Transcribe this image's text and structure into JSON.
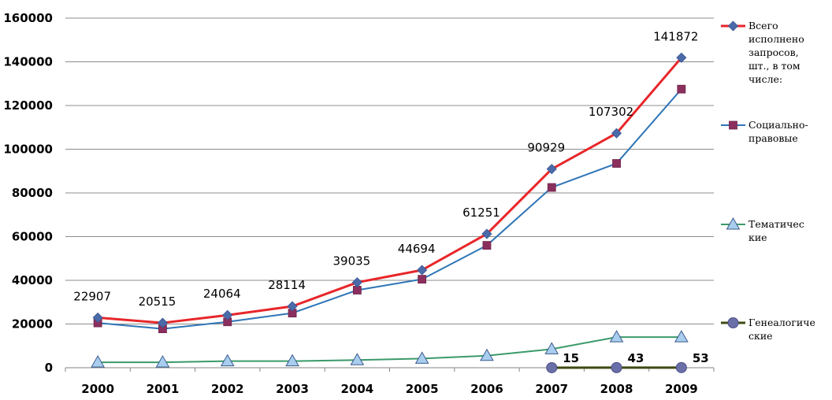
{
  "chart_data": {
    "type": "line",
    "title": "",
    "xlabel": "",
    "ylabel": "",
    "categories": [
      "2000",
      "2001",
      "2002",
      "2003",
      "2004",
      "2005",
      "2006",
      "2007",
      "2008",
      "2009"
    ],
    "y_ticks": [
      "0",
      "20000",
      "40000",
      "60000",
      "80000",
      "100000",
      "120000",
      "140000",
      "160000"
    ],
    "ylim": [
      0,
      160000
    ],
    "grid": true,
    "legend_position": "right",
    "series": [
      {
        "name": "Всего исполнено запросов, шт., в том числе:",
        "legend_lines": [
          "Всего",
          "исполнено",
          "запросов,",
          "шт., в том",
          "числе:"
        ],
        "color": "#e8262a",
        "marker": "diamond",
        "marker_color": "#4a6aa8",
        "values": [
          22907,
          20515,
          24064,
          28114,
          39035,
          44694,
          61251,
          90929,
          107302,
          141872
        ],
        "data_labels": [
          "22907",
          "20515",
          "24064",
          "28114",
          "39035",
          "44694",
          "61251",
          "90929",
          "107302",
          "141872"
        ]
      },
      {
        "name": "Социально-правовые",
        "legend_lines": [
          "Социально-",
          "правовые"
        ],
        "color": "#2e75b6",
        "marker": "square",
        "marker_color": "#8b2f5e",
        "values": [
          20500,
          17800,
          21000,
          25000,
          35500,
          40500,
          56000,
          82500,
          93500,
          127500
        ]
      },
      {
        "name": "Тематические",
        "legend_lines": [
          "Тематичес",
          "кие"
        ],
        "color": "#3a9a6a",
        "marker": "triangle",
        "marker_color": "#a8cdef",
        "values": [
          2500,
          2500,
          3000,
          3000,
          3500,
          4200,
          5500,
          8500,
          14000,
          14000
        ]
      },
      {
        "name": "Генеалогические",
        "legend_lines": [
          "Генеалогиче",
          "ские"
        ],
        "color": "#3d4a12",
        "marker": "circle",
        "marker_color": "#6b6fa8",
        "values": [
          null,
          null,
          null,
          null,
          null,
          null,
          null,
          15,
          43,
          53
        ],
        "data_labels": [
          "",
          "",
          "",
          "",
          "",
          "",
          "",
          "15",
          "43",
          "53"
        ]
      }
    ]
  }
}
